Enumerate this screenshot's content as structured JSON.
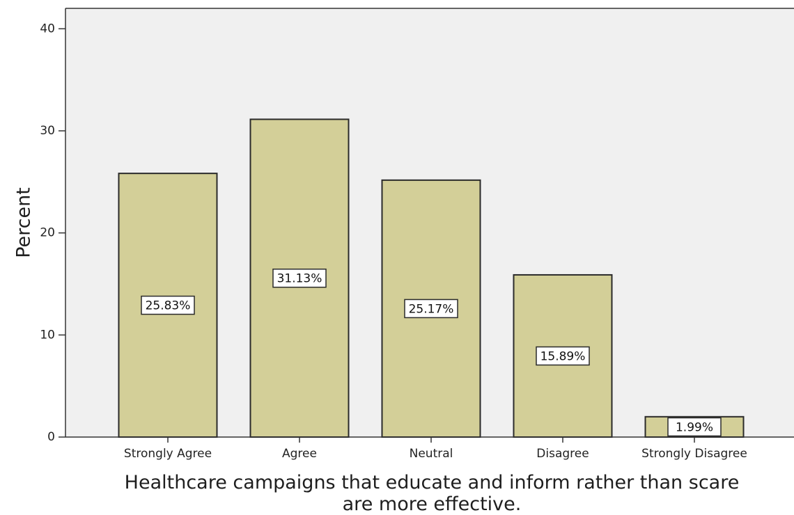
{
  "chart_data": {
    "type": "bar",
    "categories": [
      "Strongly Agree",
      "Agree",
      "Neutral",
      "Disagree",
      "Strongly Disagree"
    ],
    "values": [
      25.83,
      31.13,
      25.17,
      15.89,
      1.99
    ],
    "data_labels": [
      "25.83%",
      "31.13%",
      "25.17%",
      "15.89%",
      "1.99%"
    ],
    "ylabel": "Percent",
    "xlabel_lines": [
      "Healthcare campaigns that educate and inform rather than scare",
      "are more effective."
    ],
    "ylim": [
      0,
      42
    ],
    "yticks": [
      0,
      10,
      20,
      30,
      40
    ],
    "ytick_labels": [
      "0",
      "10",
      "20",
      "30",
      "40"
    ],
    "grid": false,
    "legend": "none",
    "colors": {
      "bar_fill": "#d3cf98",
      "bar_stroke": "#2a2a2a",
      "plot_background": "#f0f0f0",
      "axis": "#333333",
      "label_box_fill": "#ffffff"
    }
  }
}
